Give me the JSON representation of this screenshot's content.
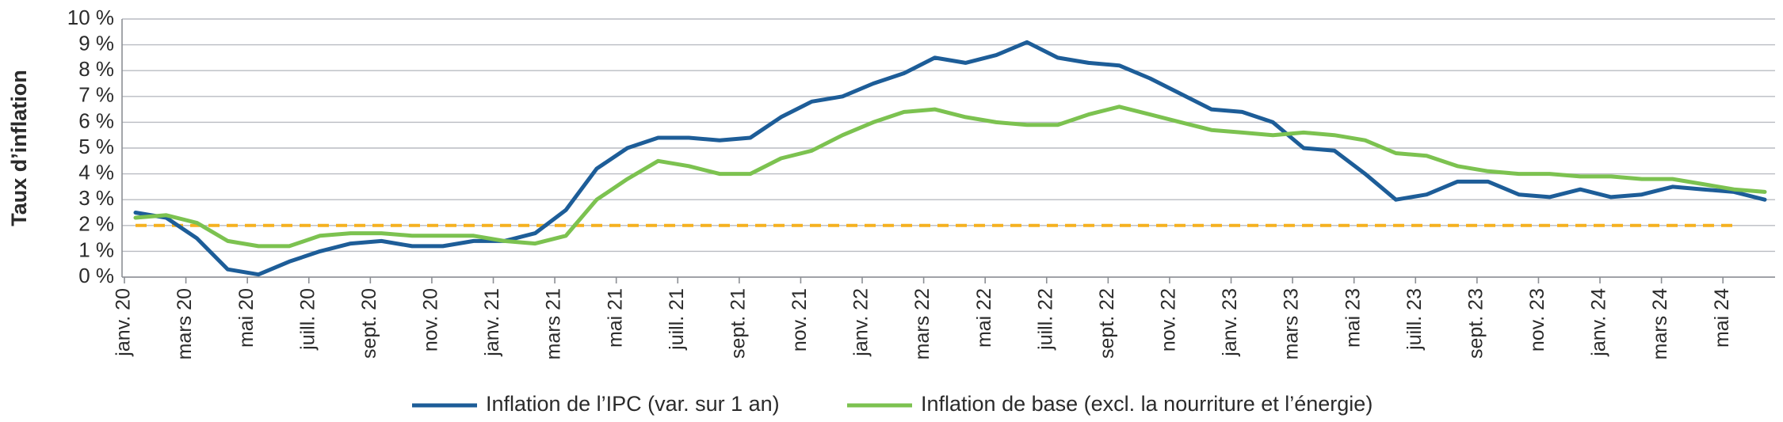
{
  "chart_data": {
    "type": "line",
    "y_label": "Taux d’inflation",
    "categories": [
      "janv. 20",
      null,
      "mars 20",
      null,
      "mai 20",
      null,
      "juill. 20",
      null,
      "sept. 20",
      null,
      "nov. 20",
      null,
      "janv. 21",
      null,
      "mars 21",
      null,
      "mai 21",
      null,
      "juill. 21",
      null,
      "sept. 21",
      null,
      "nov. 21",
      null,
      "janv. 22",
      null,
      "mars 22",
      null,
      "mai 22",
      null,
      "juill. 22",
      null,
      "sept. 22",
      null,
      "nov. 22",
      null,
      "janv. 23",
      null,
      "mars 23",
      null,
      "mai 23",
      null,
      "juill. 23",
      null,
      "sept. 23",
      null,
      "nov. 23",
      null,
      "janv. 24",
      null,
      "mars 24",
      null,
      "mai 24",
      null
    ],
    "series": [
      {
        "name": "Inflation de l’IPC (var. sur 1 an)",
        "color": "#1d5d98",
        "values": [
          2.5,
          2.3,
          1.5,
          0.3,
          0.1,
          0.6,
          1.0,
          1.3,
          1.4,
          1.2,
          1.2,
          1.4,
          1.4,
          1.7,
          2.6,
          4.2,
          5.0,
          5.4,
          5.4,
          5.3,
          5.4,
          6.2,
          6.8,
          7.0,
          7.5,
          7.9,
          8.5,
          8.3,
          8.6,
          9.1,
          8.5,
          8.3,
          8.2,
          7.7,
          7.1,
          6.5,
          6.4,
          6.0,
          5.0,
          4.9,
          4.0,
          3.0,
          3.2,
          3.7,
          3.7,
          3.2,
          3.1,
          3.4,
          3.1,
          3.2,
          3.5,
          3.4,
          3.3,
          3.0
        ]
      },
      {
        "name": "Inflation de base (excl. la nourriture et l’énergie)",
        "color": "#7cc250",
        "values": [
          2.3,
          2.4,
          2.1,
          1.4,
          1.2,
          1.2,
          1.6,
          1.7,
          1.7,
          1.6,
          1.6,
          1.6,
          1.4,
          1.3,
          1.6,
          3.0,
          3.8,
          4.5,
          4.3,
          4.0,
          4.0,
          4.6,
          4.9,
          5.5,
          6.0,
          6.4,
          6.5,
          6.2,
          6.0,
          5.9,
          5.9,
          6.3,
          6.6,
          6.3,
          6.0,
          5.7,
          5.6,
          5.5,
          5.6,
          5.5,
          5.3,
          4.8,
          4.7,
          4.3,
          4.1,
          4.0,
          4.0,
          3.9,
          3.9,
          3.8,
          3.8,
          3.6,
          3.4,
          3.3
        ]
      }
    ],
    "reference_line": {
      "value": 2,
      "color": "#f5b120",
      "dashed": true
    },
    "ylim": [
      0,
      10
    ],
    "yticks": [
      {
        "value": 0,
        "label": "0 %"
      },
      {
        "value": 1,
        "label": "1 %"
      },
      {
        "value": 2,
        "label": "2 %"
      },
      {
        "value": 3,
        "label": "3 %"
      },
      {
        "value": 4,
        "label": "4 %"
      },
      {
        "value": 5,
        "label": "5 %"
      },
      {
        "value": 6,
        "label": "6 %"
      },
      {
        "value": 7,
        "label": "7 %"
      },
      {
        "value": 8,
        "label": "8 %"
      },
      {
        "value": 9,
        "label": "9 %"
      },
      {
        "value": 10,
        "label": "10 %"
      }
    ],
    "grid": true,
    "legend": "bottom"
  }
}
